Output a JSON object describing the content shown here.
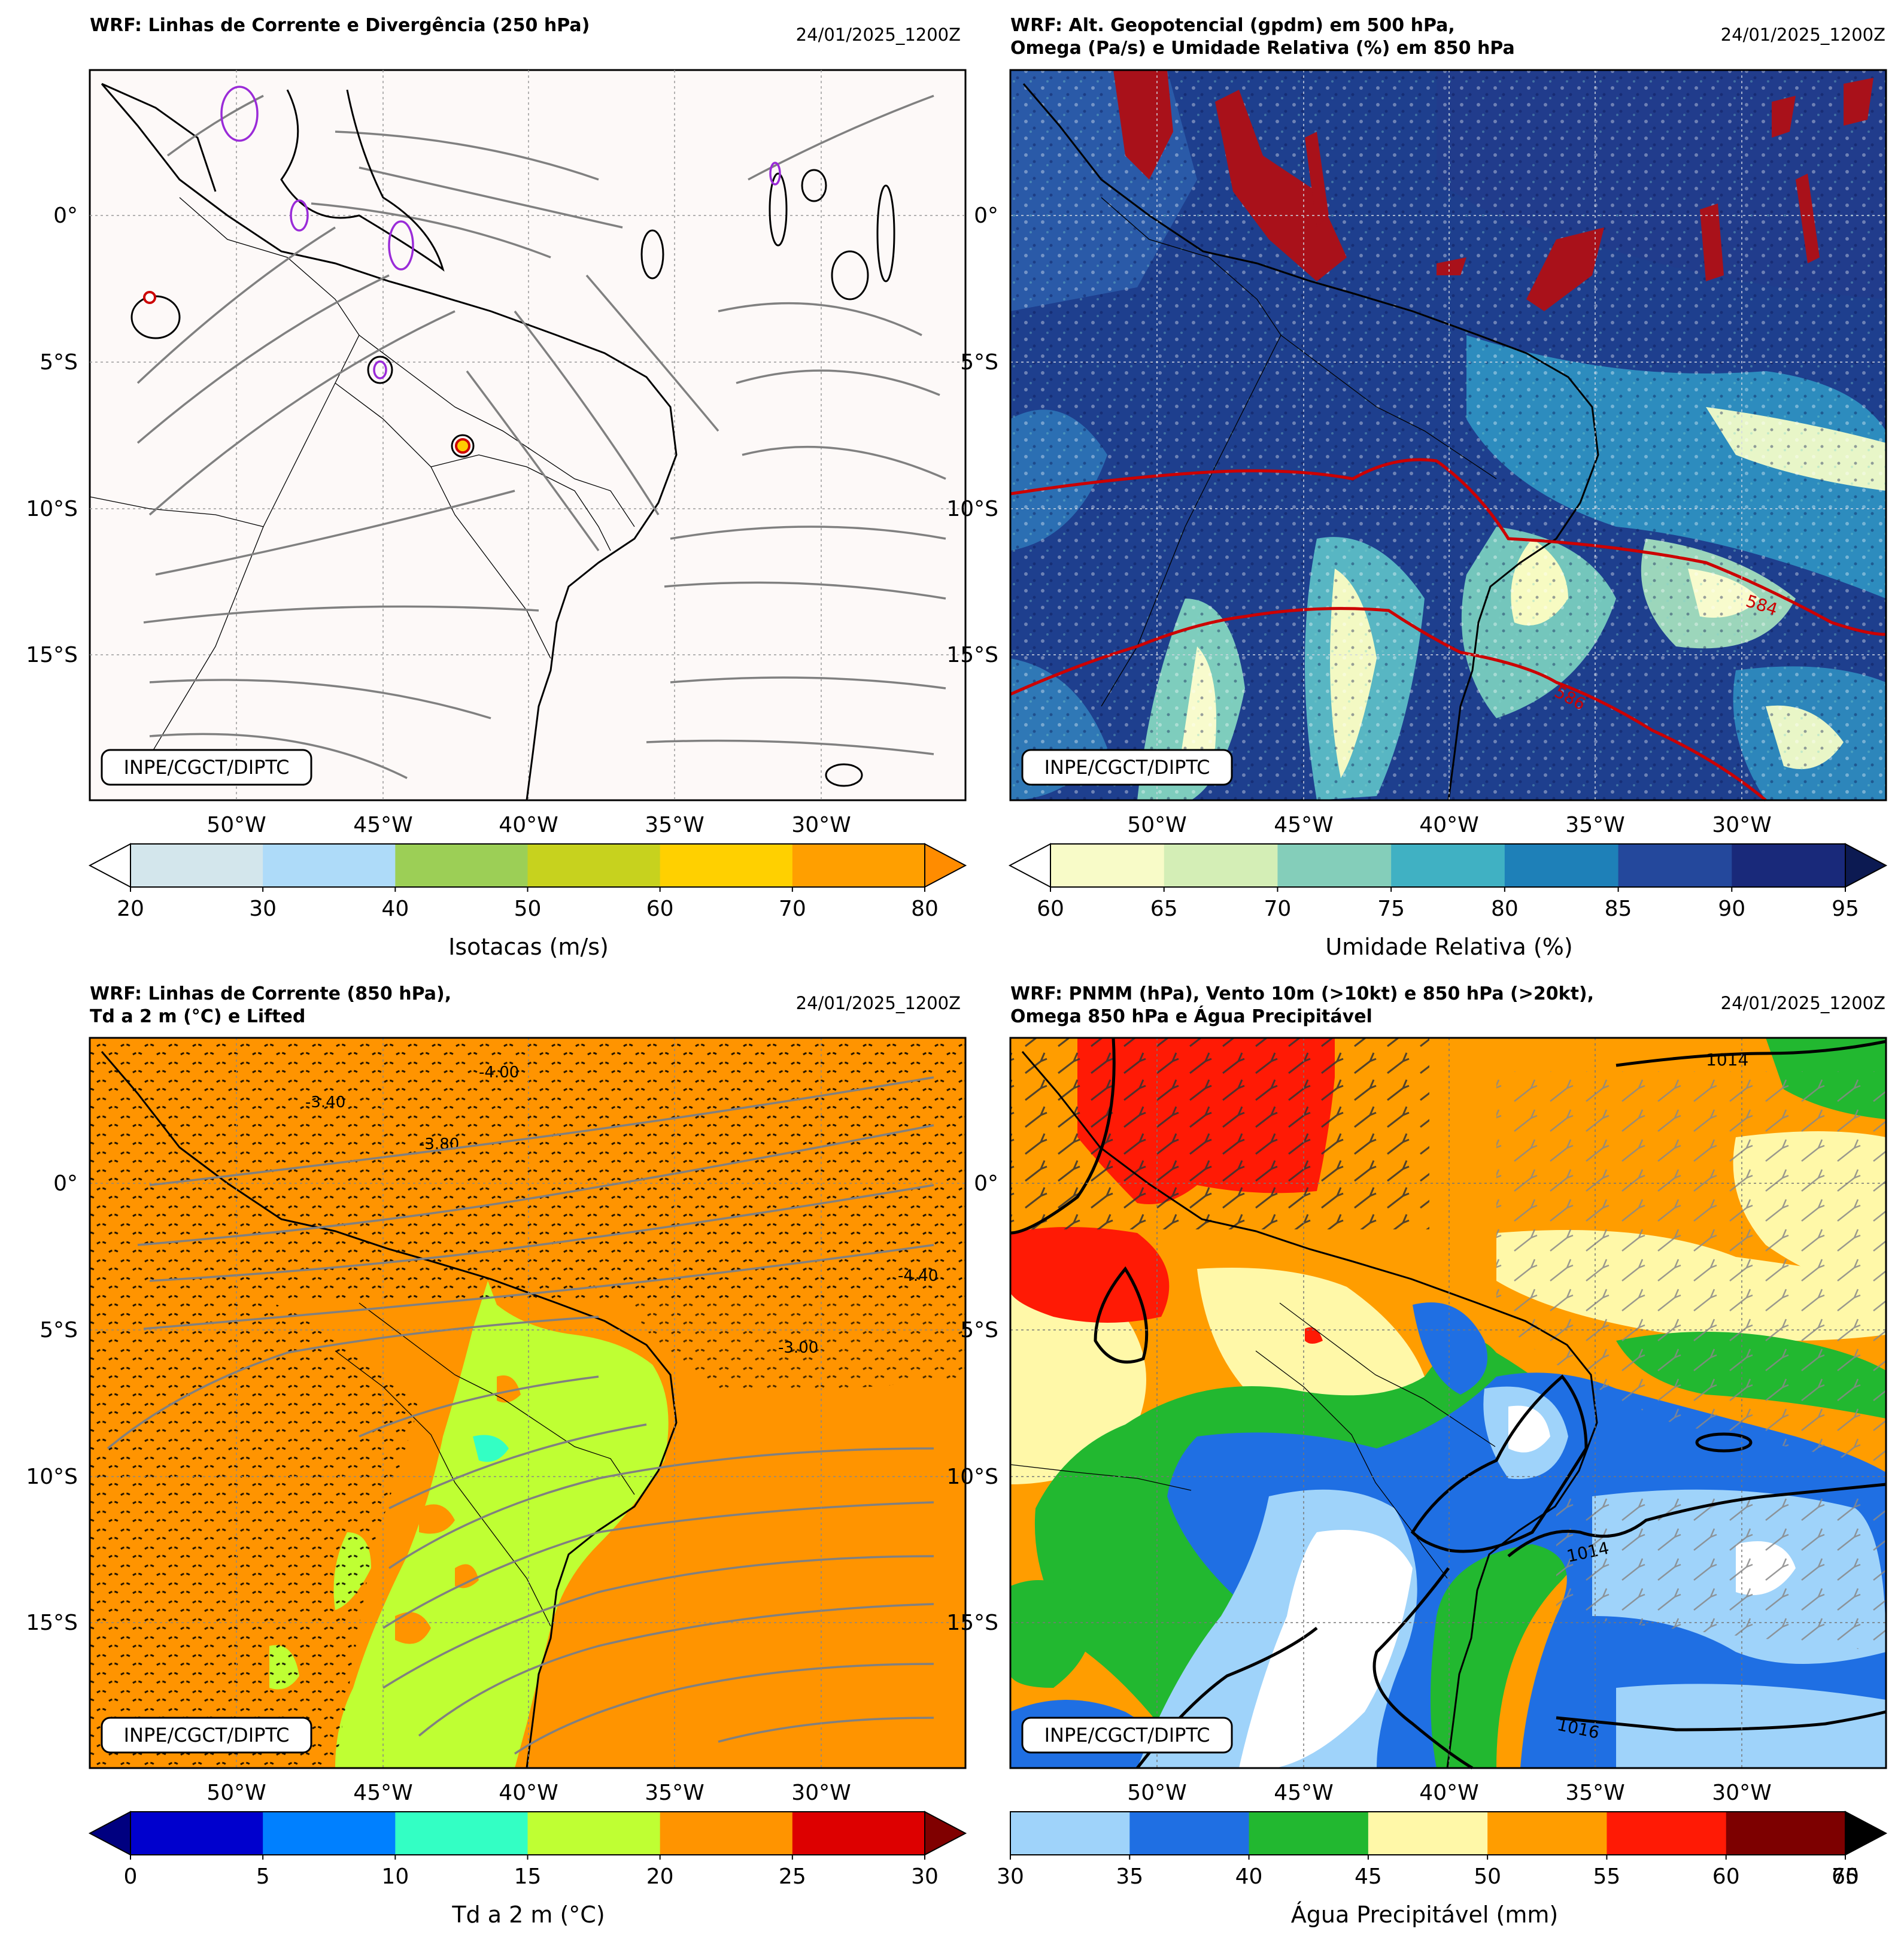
{
  "credit": "INPE/CGCT/DIPTC",
  "lon_labels": [
    "50°W",
    "45°W",
    "40°W",
    "35°W",
    "30°W"
  ],
  "lat_labels": [
    "0°",
    "5°S",
    "10°S",
    "15°S"
  ],
  "panels": [
    {
      "id": "tl",
      "title_lines": [
        "WRF: Linhas de Corrente e Divergência (250 hPa)"
      ],
      "timestamp": "24/01/2025_1200Z",
      "colorbar": {
        "label": "Isotacas (m/s)",
        "ticks": [
          "20",
          "30",
          "40",
          "50",
          "60",
          "70",
          "80"
        ],
        "colors": [
          "#d3e6ec",
          "#aedbf9",
          "#9ccf56",
          "#c7d21e",
          "#ffd000",
          "#ff9f00"
        ],
        "extend_low_color": "#ffffff",
        "extend_high_color": "#ff8c00"
      }
    },
    {
      "id": "tr",
      "title_lines": [
        "WRF: Alt. Geopotencial (gpdm) em 500 hPa,",
        "Omega (Pa/s) e Umidade Relativa (%) em 850 hPa"
      ],
      "timestamp": "24/01/2025_1200Z",
      "contour_labels": [
        "584",
        "586"
      ],
      "colorbar": {
        "label": "Umidade Relativa (%)",
        "ticks": [
          "60",
          "65",
          "70",
          "75",
          "80",
          "85",
          "90",
          "95"
        ],
        "colors": [
          "#f8fbc8",
          "#d4eeb6",
          "#84ceba",
          "#40b1c3",
          "#1e80b8",
          "#24489c",
          "#19297a"
        ],
        "extend_low_color": "#ffffff",
        "extend_high_color": "#0c1a52"
      }
    },
    {
      "id": "bl",
      "title_lines": [
        "WRF: Linhas de Corrente (850 hPa),",
        "Td a 2 m (°C) e Lifted"
      ],
      "timestamp": "24/01/2025_1200Z",
      "contour_labels": [
        "-4.00",
        "-3.40",
        "-3.80",
        "-3.00",
        "-4.40"
      ],
      "colorbar": {
        "label": "Td a 2 m (°C)",
        "ticks": [
          "0",
          "5",
          "10",
          "15",
          "20",
          "25",
          "30"
        ],
        "colors": [
          "#0000cd",
          "#0080ff",
          "#33ffc4",
          "#bfff33",
          "#ff9400",
          "#dd0000"
        ],
        "extend_low_color": "#000080",
        "extend_high_color": "#800000"
      }
    },
    {
      "id": "br",
      "title_lines": [
        "WRF: PNMM (hPa), Vento 10m (>10kt) e 850 hPa (>20kt),",
        "Omega 850 hPa e Água Precipitável"
      ],
      "timestamp": "24/01/2025_1200Z",
      "contour_labels": [
        "1014",
        "1014",
        "1016"
      ],
      "colorbar": {
        "label": "Água Precipitável (mm)",
        "ticks": [
          "30",
          "35",
          "40",
          "45",
          "50",
          "55",
          "60",
          "70"
        ],
        "end_tick_overlap": "65",
        "colors": [
          "#9fd3fa",
          "#1f6fe3",
          "#22b830",
          "#fff8a8",
          "#ff9d00",
          "#ff1a05",
          "#7d0000"
        ],
        "extend_high_color": "#000000"
      }
    }
  ]
}
